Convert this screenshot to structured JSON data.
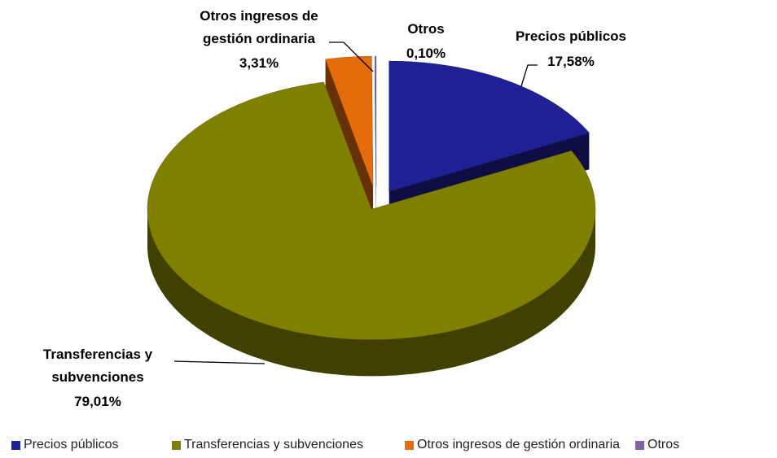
{
  "chart_data": {
    "type": "pie",
    "categories": [
      "Precios públicos",
      "Transferencias y subvenciones",
      "Otros ingresos de gestión ordinaria",
      "Otros"
    ],
    "values": [
      17.58,
      79.01,
      3.31,
      0.1
    ],
    "value_labels": [
      "17,58%",
      "79,01%",
      "3,31%",
      "0,10%"
    ],
    "colors": [
      "#1f1f96",
      "#808000",
      "#e46c0a",
      "#8064a2"
    ],
    "legend": "bottom"
  }
}
